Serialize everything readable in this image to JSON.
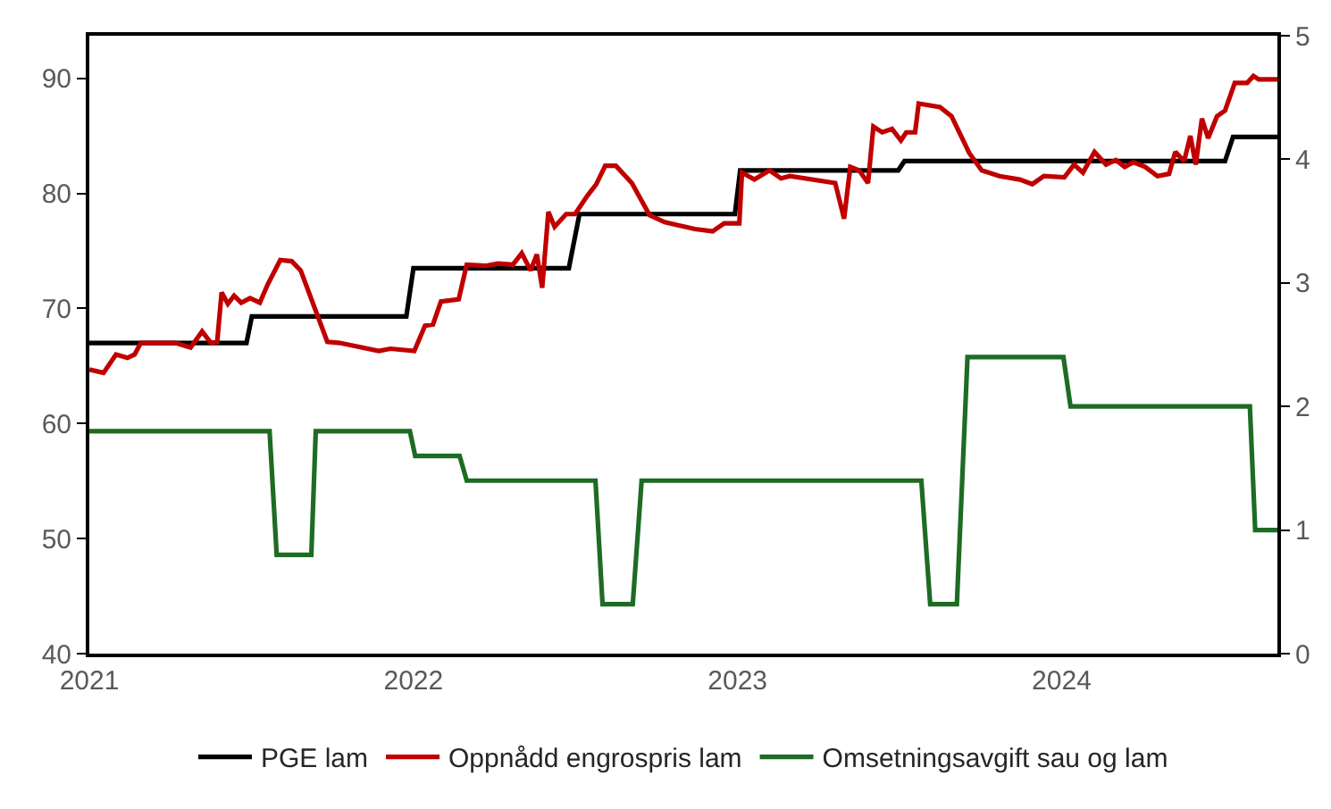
{
  "chart_data": {
    "type": "line",
    "legend": "bottom",
    "marker": "none",
    "line_style": "solid",
    "xlim": [
      "2021-01-01",
      "2024-08-31"
    ],
    "xticks": [
      {
        "value": "2021-01-01",
        "label": "2021"
      },
      {
        "value": "2022-01-01",
        "label": "2022"
      },
      {
        "value": "2023-01-01",
        "label": "2023"
      },
      {
        "value": "2024-01-01",
        "label": "2024"
      }
    ],
    "ylim": [
      40,
      93.7
    ],
    "yticks": [
      40,
      50,
      60,
      70,
      80,
      90
    ],
    "y2lim": [
      0,
      5
    ],
    "y2ticks": [
      0,
      1,
      2,
      3,
      4,
      5
    ],
    "series": [
      {
        "name": "PGE lam",
        "color": "#000000",
        "x": [
          "2021-01-01",
          "2021-06-27",
          "2021-07-03",
          "2021-12-24",
          "2022-01-01",
          "2022-06-25",
          "2022-07-07",
          "2022-12-29",
          "2023-01-04",
          "2023-07-01",
          "2023-07-08",
          "2024-07-03",
          "2024-07-12",
          "2024-08-31"
        ],
        "values": [
          67,
          67,
          69.3,
          69.3,
          73.5,
          73.5,
          78.2,
          78.2,
          82,
          82,
          82.8,
          82.8,
          84.9,
          84.9
        ]
      },
      {
        "name": "Oppnådd engrospris lam",
        "color": "#c00000",
        "x": [
          "2021-01-01",
          "2021-01-17",
          "2021-01-31",
          "2021-02-13",
          "2021-02-21",
          "2021-02-28",
          "2021-04-08",
          "2021-04-25",
          "2021-05-08",
          "2021-05-18",
          "2021-05-25",
          "2021-05-30",
          "2021-06-06",
          "2021-06-13",
          "2021-06-21",
          "2021-07-01",
          "2021-07-12",
          "2021-07-21",
          "2021-08-04",
          "2021-08-17",
          "2021-08-27",
          "2021-09-26",
          "2021-10-10",
          "2021-11-23",
          "2021-12-06",
          "2022-01-02",
          "2022-01-14",
          "2022-01-23",
          "2022-02-01",
          "2022-02-21",
          "2022-03-02",
          "2022-03-23",
          "2022-04-06",
          "2022-04-23",
          "2022-05-03",
          "2022-05-13",
          "2022-05-20",
          "2022-05-26",
          "2022-06-02",
          "2022-06-09",
          "2022-06-22",
          "2022-07-02",
          "2022-07-16",
          "2022-07-26",
          "2022-08-05",
          "2022-08-17",
          "2022-09-04",
          "2022-09-24",
          "2022-10-11",
          "2022-11-14",
          "2022-12-04",
          "2022-12-17",
          "2023-01-03",
          "2023-01-06",
          "2023-01-20",
          "2023-02-06",
          "2023-02-19",
          "2023-03-01",
          "2023-04-21",
          "2023-05-01",
          "2023-05-08",
          "2023-05-18",
          "2023-05-28",
          "2023-06-03",
          "2023-06-13",
          "2023-06-24",
          "2023-07-04",
          "2023-07-10",
          "2023-07-20",
          "2023-07-24",
          "2023-08-17",
          "2023-08-30",
          "2023-09-19",
          "2023-10-03",
          "2023-10-23",
          "2023-11-15",
          "2023-11-29",
          "2023-12-12",
          "2024-01-04",
          "2024-01-15",
          "2024-01-25",
          "2024-02-07",
          "2024-02-20",
          "2024-03-02",
          "2024-03-12",
          "2024-03-22",
          "2024-04-04",
          "2024-04-18",
          "2024-05-01",
          "2024-05-08",
          "2024-05-18",
          "2024-05-25",
          "2024-05-31",
          "2024-06-07",
          "2024-06-14",
          "2024-06-24",
          "2024-07-03",
          "2024-07-14",
          "2024-07-28",
          "2024-08-04",
          "2024-08-10",
          "2024-08-31"
        ],
        "values": [
          64.7,
          64.4,
          66.0,
          65.7,
          66.0,
          67.0,
          67.0,
          66.6,
          68.0,
          67.0,
          67.1,
          71.4,
          70.4,
          71.1,
          70.5,
          70.9,
          70.5,
          72.1,
          74.2,
          74.1,
          73.3,
          67.1,
          67.0,
          66.3,
          66.5,
          66.3,
          68.5,
          68.6,
          70.6,
          70.8,
          73.8,
          73.7,
          73.9,
          73.8,
          74.8,
          73.3,
          74.7,
          71.8,
          78.4,
          77.1,
          78.2,
          78.2,
          79.8,
          80.8,
          82.4,
          82.4,
          80.9,
          78.1,
          77.5,
          76.9,
          76.7,
          77.4,
          77.4,
          81.8,
          81.2,
          82.0,
          81.3,
          81.5,
          80.9,
          77.8,
          82.3,
          82.0,
          80.9,
          85.8,
          85.3,
          85.6,
          84.6,
          85.3,
          85.3,
          87.8,
          87.5,
          86.7,
          83.5,
          82.0,
          81.5,
          81.2,
          80.8,
          81.5,
          81.4,
          82.5,
          81.8,
          83.6,
          82.5,
          82.9,
          82.3,
          82.7,
          82.3,
          81.5,
          81.7,
          83.6,
          82.8,
          85.0,
          82.5,
          86.5,
          84.8,
          86.7,
          87.2,
          89.6,
          89.6,
          90.2,
          89.9,
          89.9
        ]
      },
      {
        "name": "Omsetningsavgift sau og lam",
        "color": "#1e6b24",
        "axis": "y2",
        "x": [
          "2021-01-01",
          "2021-07-23",
          "2021-07-31",
          "2021-09-08",
          "2021-09-13",
          "2021-12-28",
          "2022-01-03",
          "2022-02-22",
          "2022-03-02",
          "2022-07-25",
          "2022-08-02",
          "2022-09-05",
          "2022-09-15",
          "2023-07-27",
          "2023-08-06",
          "2023-09-05",
          "2023-09-17",
          "2024-01-03",
          "2024-01-11",
          "2024-07-31",
          "2024-08-06",
          "2024-08-31"
        ],
        "values": [
          1.8,
          1.8,
          0.8,
          0.8,
          1.8,
          1.8,
          1.6,
          1.6,
          1.4,
          1.4,
          0.4,
          0.4,
          1.4,
          1.4,
          0.4,
          0.4,
          2.4,
          2.4,
          2.0,
          2.0,
          1.0,
          1.0
        ]
      }
    ]
  }
}
